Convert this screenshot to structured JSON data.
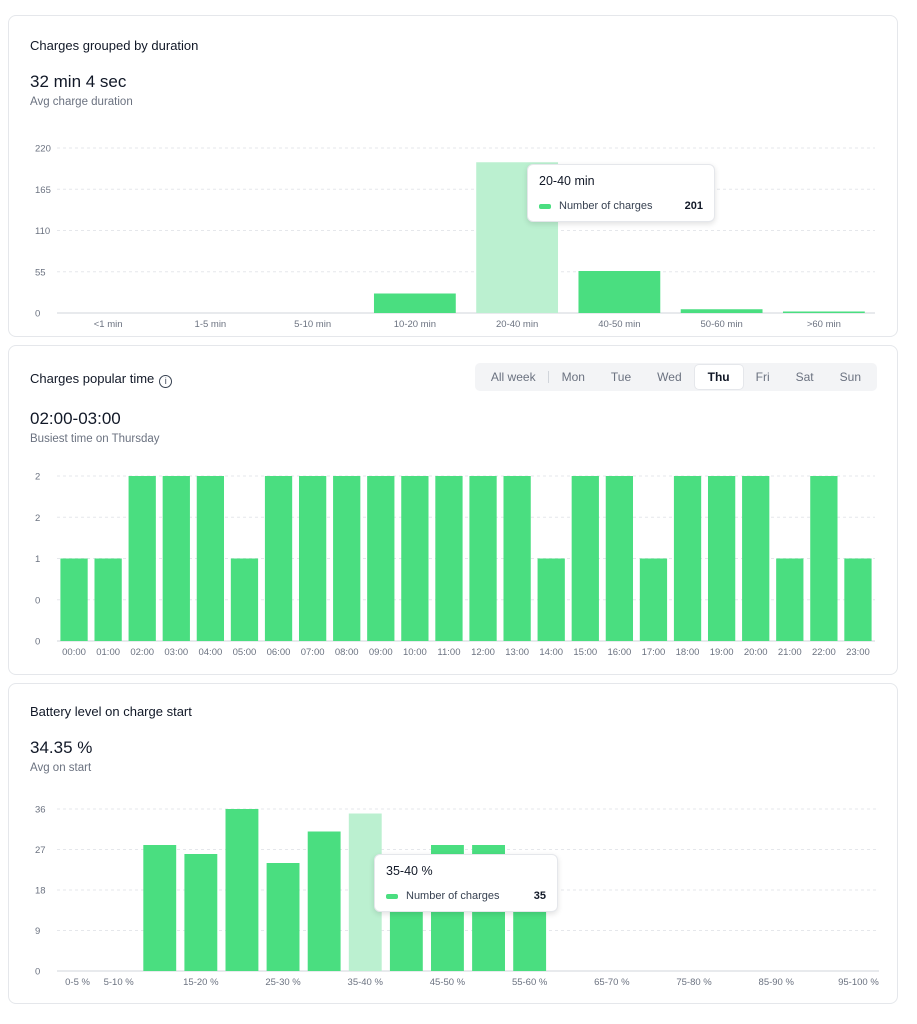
{
  "colors": {
    "bar": "#4ade80",
    "bar_highlight": "#bbf0d0",
    "grid": "#e5e7eb",
    "axis_text": "#6b7280"
  },
  "duration_card": {
    "title": "Charges grouped by duration",
    "metric": "32 min 4 sec",
    "metric_label": "Avg charge duration",
    "tooltip": {
      "title": "20-40 min",
      "series": "Number of charges",
      "value": "201"
    }
  },
  "popular_card": {
    "title": "Charges popular time",
    "info_icon": "info-circle-icon",
    "metric": "02:00-03:00",
    "metric_label": "Busiest time on Thursday",
    "tabs": [
      {
        "label": "All week"
      },
      {
        "label": "Mon"
      },
      {
        "label": "Tue"
      },
      {
        "label": "Wed"
      },
      {
        "label": "Thu",
        "active": true
      },
      {
        "label": "Fri"
      },
      {
        "label": "Sat"
      },
      {
        "label": "Sun"
      }
    ]
  },
  "battery_card": {
    "title": "Battery level on charge start",
    "metric": "34.35 %",
    "metric_label": "Avg on start",
    "tooltip": {
      "title": "35-40 %",
      "series": "Number of charges",
      "value": "35"
    }
  },
  "chart_data": [
    {
      "type": "bar",
      "title": "Charges grouped by duration",
      "categories": [
        "<1 min",
        "1-5 min",
        "5-10 min",
        "10-20 min",
        "20-40 min",
        "40-50 min",
        "50-60 min",
        ">60 min"
      ],
      "series": [
        {
          "name": "Number of charges",
          "values": [
            0,
            0,
            0,
            26,
            201,
            56,
            5,
            2
          ]
        }
      ],
      "yticks": [
        "0",
        "55",
        "110",
        "165",
        "220"
      ],
      "ylim": [
        0,
        220
      ],
      "highlight_index": 4,
      "grid": true
    },
    {
      "type": "bar",
      "title": "Charges popular time",
      "categories": [
        "00:00",
        "01:00",
        "02:00",
        "03:00",
        "04:00",
        "05:00",
        "06:00",
        "07:00",
        "08:00",
        "09:00",
        "10:00",
        "11:00",
        "12:00",
        "13:00",
        "14:00",
        "15:00",
        "16:00",
        "17:00",
        "18:00",
        "19:00",
        "20:00",
        "21:00",
        "22:00",
        "23:00"
      ],
      "series": [
        {
          "values": [
            1,
            1,
            2,
            2,
            2,
            1,
            2,
            2,
            2,
            2,
            2,
            2,
            2,
            2,
            1,
            2,
            2,
            1,
            2,
            2,
            2,
            1,
            2,
            1
          ]
        }
      ],
      "yticks": [
        "0",
        "0",
        "1",
        "2",
        "2"
      ],
      "ylim": [
        0,
        2
      ],
      "grid": true
    },
    {
      "type": "bar",
      "title": "Battery level on charge start",
      "categories": [
        "0-5 %",
        "5-10 %",
        "10-15 %",
        "15-20 %",
        "20-25 %",
        "25-30 %",
        "30-35 %",
        "35-40 %",
        "40-45 %",
        "45-50 %",
        "50-55 %",
        "55-60 %",
        "60-65 %",
        "65-70 %",
        "70-75 %",
        "75-80 %",
        "80-85 %",
        "85-90 %",
        "90-95 %",
        "95-100 %"
      ],
      "xtick_labels": [
        "0-5 %",
        "5-10 %",
        "",
        "15-20 %",
        "",
        "25-30 %",
        "",
        "35-40 %",
        "",
        "45-50 %",
        "",
        "55-60 %",
        "",
        "65-70 %",
        "",
        "75-80 %",
        "",
        "85-90 %",
        "",
        "95-100 %"
      ],
      "series": [
        {
          "name": "Number of charges",
          "values": [
            0,
            0,
            28,
            26,
            36,
            24,
            31,
            35,
            25,
            28,
            28,
            26,
            0,
            0,
            0,
            0,
            0,
            0,
            0,
            0
          ]
        }
      ],
      "yticks": [
        "0",
        "9",
        "18",
        "27",
        "36"
      ],
      "ylim": [
        0,
        36
      ],
      "highlight_index": 7,
      "grid": true
    }
  ]
}
